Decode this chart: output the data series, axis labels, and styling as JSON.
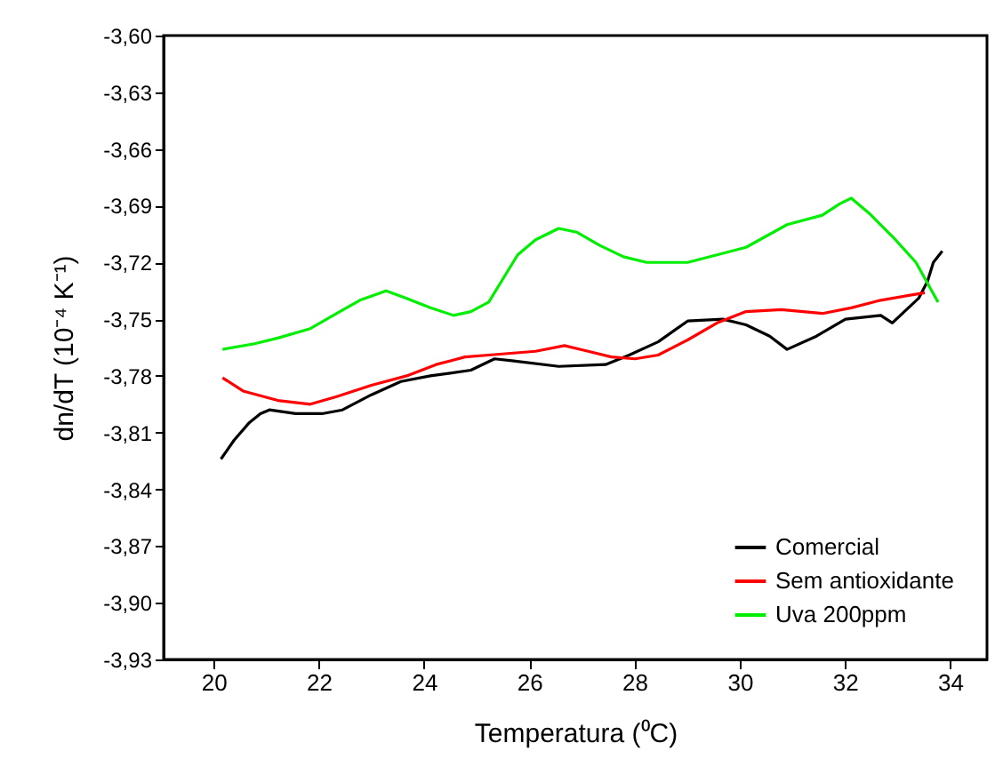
{
  "chart_data": {
    "type": "line",
    "xlabel": "Temperatura (⁰C)",
    "ylabel": "dn/dT (10⁻⁴ K⁻¹)",
    "xlim": [
      19.05,
      34.7
    ],
    "xticks": [
      20,
      22,
      24,
      26,
      28,
      30,
      32,
      34
    ],
    "ylim": [
      -3.93,
      -3.6
    ],
    "yticks": [
      {
        "value": -3.93,
        "label": "-3,93"
      },
      {
        "value": -3.9,
        "label": "-3,90"
      },
      {
        "value": -3.87,
        "label": "-3,87"
      },
      {
        "value": -3.84,
        "label": "-3,84"
      },
      {
        "value": -3.81,
        "label": "-3,81"
      },
      {
        "value": -3.78,
        "label": "-3,78"
      },
      {
        "value": -3.75,
        "label": "-3,75"
      },
      {
        "value": -3.72,
        "label": "-3,72"
      },
      {
        "value": -3.69,
        "label": "-3,69"
      },
      {
        "value": -3.66,
        "label": "-3,66"
      },
      {
        "value": -3.63,
        "label": "-3,63"
      },
      {
        "value": -3.6,
        "label": "-3,60"
      }
    ],
    "grid": false,
    "legend": "bottom right",
    "marker": "none",
    "line_style": "solid",
    "series": [
      {
        "name": "Comercial",
        "color": "#000000",
        "x": [
          20.14,
          20.39,
          20.67,
          20.89,
          21.06,
          21.56,
          22.06,
          22.45,
          23.0,
          23.56,
          24.12,
          24.89,
          25.34,
          25.67,
          26.56,
          27.45,
          27.9,
          28.45,
          29.01,
          29.68,
          30.12,
          30.57,
          30.9,
          31.46,
          32.01,
          32.68,
          32.9,
          33.4,
          33.57,
          33.68,
          33.85
        ],
        "values": [
          -3.824,
          -3.814,
          -3.805,
          -3.8,
          -3.798,
          -3.8,
          -3.8,
          -3.798,
          -3.79,
          -3.783,
          -3.78,
          -3.777,
          -3.771,
          -3.772,
          -3.775,
          -3.774,
          -3.769,
          -3.762,
          -3.751,
          -3.75,
          -3.753,
          -3.759,
          -3.766,
          -3.759,
          -3.75,
          -3.748,
          -3.752,
          -3.739,
          -3.73,
          -3.72,
          -3.714
        ]
      },
      {
        "name": "Sem antioxidante",
        "color": "#ff0000",
        "x": [
          20.17,
          20.56,
          21.22,
          21.84,
          22.34,
          23.0,
          23.67,
          24.23,
          24.78,
          25.23,
          26.12,
          26.67,
          27.12,
          27.56,
          28.01,
          28.45,
          29.01,
          29.57,
          30.12,
          30.79,
          31.57,
          32.12,
          32.68,
          33.52
        ],
        "values": [
          -3.781,
          -3.788,
          -3.793,
          -3.795,
          -3.791,
          -3.785,
          -3.78,
          -3.774,
          -3.77,
          -3.769,
          -3.767,
          -3.764,
          -3.767,
          -3.77,
          -3.771,
          -3.769,
          -3.761,
          -3.752,
          -3.746,
          -3.745,
          -3.747,
          -3.744,
          -3.74,
          -3.736
        ]
      },
      {
        "name": "Uva 200ppm",
        "color": "#00ee00",
        "x": [
          20.17,
          20.78,
          21.22,
          21.84,
          22.34,
          22.78,
          23.28,
          23.67,
          24.12,
          24.56,
          24.89,
          25.23,
          25.56,
          25.78,
          26.12,
          26.56,
          26.9,
          27.34,
          27.79,
          28.23,
          29.01,
          29.57,
          30.12,
          30.9,
          31.57,
          31.9,
          32.12,
          32.46,
          32.96,
          33.35,
          33.77
        ],
        "values": [
          -3.766,
          -3.763,
          -3.76,
          -3.755,
          -3.747,
          -3.74,
          -3.735,
          -3.739,
          -3.744,
          -3.748,
          -3.746,
          -3.741,
          -3.726,
          -3.716,
          -3.708,
          -3.702,
          -3.704,
          -3.711,
          -3.717,
          -3.72,
          -3.72,
          -3.716,
          -3.712,
          -3.7,
          -3.695,
          -3.689,
          -3.686,
          -3.694,
          -3.708,
          -3.72,
          -3.741
        ]
      }
    ]
  }
}
